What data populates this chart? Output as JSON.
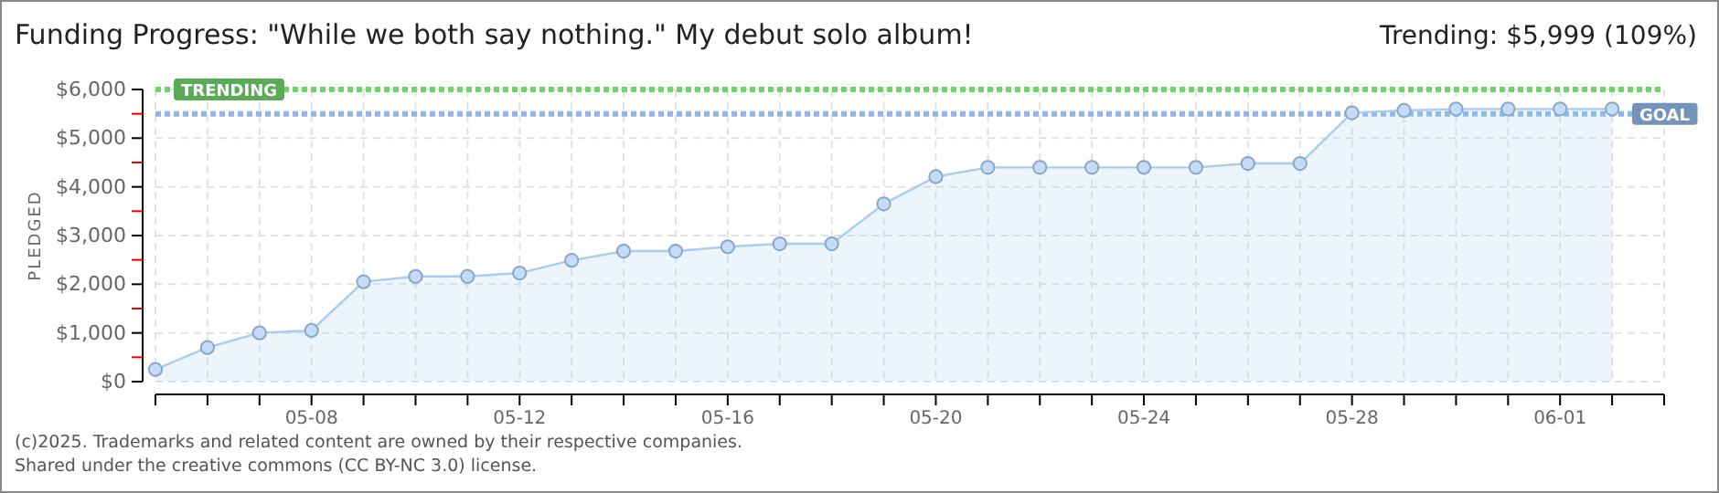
{
  "chart_data": {
    "type": "area",
    "title": "Funding Progress: \"While we both say nothing.\" My debut solo album!",
    "subtitle": "Trending: $5,999 (109%)",
    "ylabel": "PLEDGED",
    "x": [
      "--05-05",
      "--05-06",
      "--05-07",
      "--05-08",
      "--05-09",
      "--05-10",
      "--05-11",
      "--05-12",
      "--05-13",
      "--05-14",
      "--05-15",
      "--05-16",
      "--05-17",
      "--05-18",
      "--05-19",
      "--05-20",
      "--05-21",
      "--05-22",
      "--05-23",
      "--05-24",
      "--05-25",
      "--05-26",
      "--05-27",
      "--05-28",
      "--05-29",
      "--05-30",
      "--05-31",
      "--06-01",
      "--06-02"
    ],
    "series": [
      {
        "color": "#a9cdf0",
        "values": [
          250,
          700,
          1000,
          1050,
          2050,
          2160,
          2160,
          2230,
          2490,
          2680,
          2680,
          2770,
          2830,
          2830,
          3650,
          4210,
          4400,
          4400,
          4400,
          4400,
          4400,
          4480,
          4480,
          5520,
          5570,
          5600,
          5600,
          5600,
          5600
        ]
      }
    ],
    "xlim": [
      "--05-05",
      "--06-03"
    ],
    "xticks": [
      {
        "value": "--05-05",
        "label": null
      },
      {
        "value": "--05-06",
        "label": null
      },
      {
        "value": "--05-07",
        "label": null
      },
      {
        "value": "--05-08",
        "label": "05-08"
      },
      {
        "value": "--05-09",
        "label": null
      },
      {
        "value": "--05-10",
        "label": null
      },
      {
        "value": "--05-11",
        "label": null
      },
      {
        "value": "--05-12",
        "label": "05-12"
      },
      {
        "value": "--05-13",
        "label": null
      },
      {
        "value": "--05-14",
        "label": null
      },
      {
        "value": "--05-15",
        "label": null
      },
      {
        "value": "--05-16",
        "label": "05-16"
      },
      {
        "value": "--05-17",
        "label": null
      },
      {
        "value": "--05-18",
        "label": null
      },
      {
        "value": "--05-19",
        "label": null
      },
      {
        "value": "--05-20",
        "label": "05-20"
      },
      {
        "value": "--05-21",
        "label": null
      },
      {
        "value": "--05-22",
        "label": null
      },
      {
        "value": "--05-23",
        "label": null
      },
      {
        "value": "--05-24",
        "label": "05-24"
      },
      {
        "value": "--05-25",
        "label": null
      },
      {
        "value": "--05-26",
        "label": null
      },
      {
        "value": "--05-27",
        "label": null
      },
      {
        "value": "--05-28",
        "label": "05-28"
      },
      {
        "value": "--05-29",
        "label": null
      },
      {
        "value": "--05-30",
        "label": null
      },
      {
        "value": "--05-31",
        "label": null
      },
      {
        "value": "--06-01",
        "label": "06-01"
      },
      {
        "value": "--06-02",
        "label": null
      },
      {
        "value": "--06-03",
        "label": null
      }
    ],
    "ylim": [
      0,
      6000
    ],
    "yticks": [
      {
        "value": 0,
        "label": "$0"
      },
      {
        "value": 500,
        "label": null
      },
      {
        "value": 1000,
        "label": "$1,000"
      },
      {
        "value": 1500,
        "label": null
      },
      {
        "value": 2000,
        "label": "$2,000"
      },
      {
        "value": 2500,
        "label": null
      },
      {
        "value": 3000,
        "label": "$3,000"
      },
      {
        "value": 3500,
        "label": null
      },
      {
        "value": 4000,
        "label": "$4,000"
      },
      {
        "value": 4500,
        "label": null
      },
      {
        "value": 5000,
        "label": "$5,000"
      },
      {
        "value": 5500,
        "label": null
      },
      {
        "value": 6000,
        "label": "$6,000"
      }
    ],
    "ref_lines": [
      {
        "axis": "y",
        "value": 5999,
        "label": "TRENDING",
        "color": "#6fd36a",
        "line_style": "dotted"
      },
      {
        "axis": "y",
        "value": 5500,
        "label": "GOAL",
        "color": "#8fb6e6",
        "line_style": "dotted"
      }
    ],
    "grid": true,
    "marker": "circle",
    "annotations": [
      "(c)2025. Trademarks and related content are owned by their respective companies.",
      "Shared under the creative commons (CC BY-NC 3.0) license."
    ]
  }
}
